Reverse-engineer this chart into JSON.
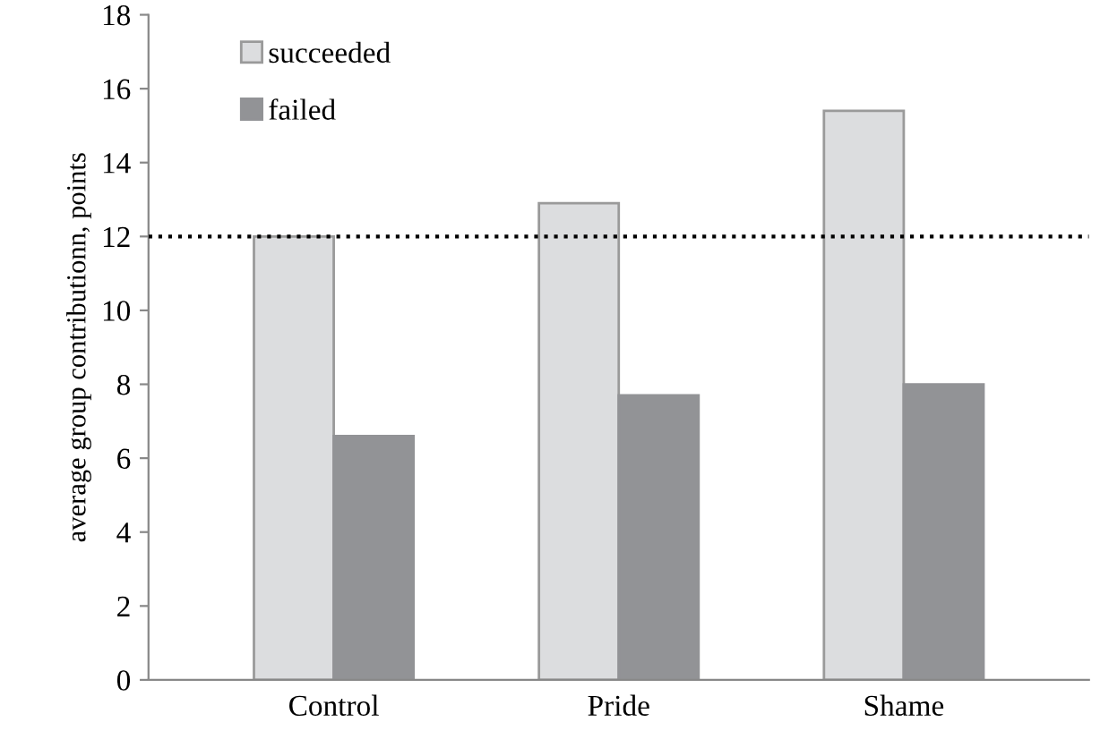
{
  "chart_data": {
    "type": "bar",
    "ylabel": "average group contributionn, points",
    "categories": [
      "Control",
      "Pride",
      "Shame"
    ],
    "series": [
      {
        "name": "succeeded",
        "color": "#dcdddf",
        "values": [
          12.0,
          12.9,
          15.4
        ]
      },
      {
        "name": "failed",
        "color": "#929396",
        "values": [
          6.6,
          7.7,
          8.0
        ]
      }
    ],
    "ylim": [
      0,
      18
    ],
    "yticks": [
      0,
      2,
      4,
      6,
      8,
      10,
      12,
      14,
      16,
      18
    ],
    "ref_lines": [
      {
        "axis": "y",
        "value": 12,
        "line_style": "dotted",
        "color": "#000000"
      }
    ],
    "grid": false,
    "legend": "top left"
  }
}
